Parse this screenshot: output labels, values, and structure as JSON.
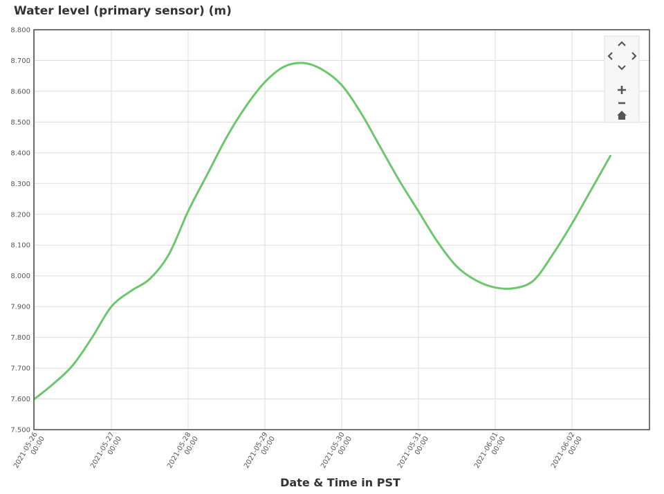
{
  "chart_data": {
    "type": "line",
    "title": "Water level (primary sensor) (m)",
    "xlabel": "Date & Time in PST",
    "ylabel": "",
    "ylim": [
      7.5,
      8.8
    ],
    "xlim": [
      "2021-05-26 00:00",
      "2021-06-02 12:00"
    ],
    "yticks": [
      "7.500",
      "7.600",
      "7.700",
      "7.800",
      "7.900",
      "8.000",
      "8.100",
      "8.200",
      "8.300",
      "8.400",
      "8.500",
      "8.600",
      "8.700",
      "8.800"
    ],
    "xticks": [
      {
        "date": "2021-05-26",
        "time": "00:00"
      },
      {
        "date": "2021-05-27",
        "time": "00:00"
      },
      {
        "date": "2021-05-28",
        "time": "00:00"
      },
      {
        "date": "2021-05-29",
        "time": "00:00"
      },
      {
        "date": "2021-05-30",
        "time": "00:00"
      },
      {
        "date": "2021-05-31",
        "time": "00:00"
      },
      {
        "date": "2021-06-01",
        "time": "00:00"
      },
      {
        "date": "2021-06-02",
        "time": "00:00"
      }
    ],
    "grid": true,
    "legend": "none",
    "series": [
      {
        "color": "#6cc66c",
        "points": [
          [
            "2021-05-26 00:00",
            7.6
          ],
          [
            "2021-05-26 06:00",
            7.65
          ],
          [
            "2021-05-26 12:00",
            7.71
          ],
          [
            "2021-05-26 18:00",
            7.8
          ],
          [
            "2021-05-27 00:00",
            7.9
          ],
          [
            "2021-05-27 06:00",
            7.95
          ],
          [
            "2021-05-27 12:00",
            7.99
          ],
          [
            "2021-05-27 18:00",
            8.07
          ],
          [
            "2021-05-28 00:00",
            8.21
          ],
          [
            "2021-05-28 06:00",
            8.33
          ],
          [
            "2021-05-28 12:00",
            8.45
          ],
          [
            "2021-05-28 18:00",
            8.55
          ],
          [
            "2021-05-29 00:00",
            8.63
          ],
          [
            "2021-05-29 06:00",
            8.68
          ],
          [
            "2021-05-29 12:00",
            8.692
          ],
          [
            "2021-05-29 18:00",
            8.67
          ],
          [
            "2021-05-30 00:00",
            8.62
          ],
          [
            "2021-05-30 06:00",
            8.53
          ],
          [
            "2021-05-30 12:00",
            8.42
          ],
          [
            "2021-05-30 18:00",
            8.31
          ],
          [
            "2021-05-31 00:00",
            8.21
          ],
          [
            "2021-05-31 06:00",
            8.11
          ],
          [
            "2021-05-31 12:00",
            8.03
          ],
          [
            "2021-05-31 18:00",
            7.985
          ],
          [
            "2021-06-01 00:00",
            7.962
          ],
          [
            "2021-06-01 06:00",
            7.96
          ],
          [
            "2021-06-01 12:00",
            7.985
          ],
          [
            "2021-06-01 18:00",
            8.07
          ],
          [
            "2021-06-02 00:00",
            8.17
          ],
          [
            "2021-06-02 06:00",
            8.28
          ],
          [
            "2021-06-02 12:00",
            8.39
          ]
        ]
      }
    ]
  },
  "controls": {
    "pan_up_icon": "chevron-up",
    "pan_left_icon": "chevron-left",
    "pan_right_icon": "chevron-right",
    "pan_down_icon": "chevron-down",
    "zoom_in_icon": "plus",
    "zoom_out_icon": "minus",
    "reset_icon": "home"
  }
}
